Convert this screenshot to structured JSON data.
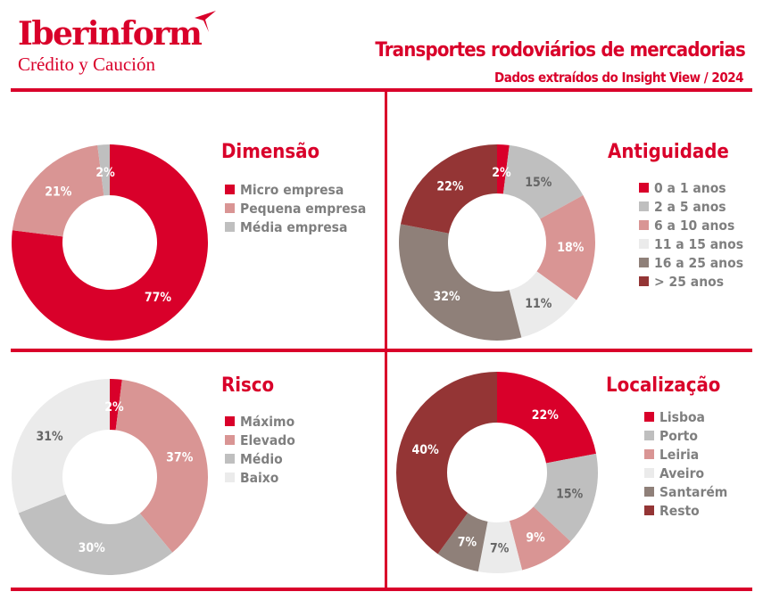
{
  "header": {
    "logo_brand": "Iberinform",
    "logo_sub": "Crédito y Caución",
    "title": "Transportes rodoviários de mercadorias",
    "subtitle": "Dados extraídos do Insight View / 2024"
  },
  "chart_data": [
    {
      "type": "pie",
      "title": "Dimensão",
      "categories": [
        "Micro empresa",
        "Pequena empresa",
        "Média empresa"
      ],
      "values": [
        77,
        21,
        2
      ],
      "labels": [
        "77%",
        "21%",
        "2%"
      ],
      "colors": [
        "#d9002a",
        "#d99594",
        "#bfbfbf"
      ],
      "label_colors": [
        "#ffffff",
        "#ffffff",
        "#ffffff"
      ],
      "legend": "right"
    },
    {
      "type": "pie",
      "title": "Antiguidade",
      "categories": [
        "0 a 1 anos",
        "2 a 5 anos",
        "6 a 10 anos",
        "11 a 15 anos",
        "16 a 25 anos",
        "> 25 anos"
      ],
      "values": [
        2,
        15,
        18,
        11,
        32,
        22
      ],
      "labels": [
        "2%",
        "15%",
        "18%",
        "11%",
        "32%",
        "22%"
      ],
      "colors": [
        "#d9002a",
        "#bfbfbf",
        "#d99594",
        "#ebebeb",
        "#8f8079",
        "#943535"
      ],
      "label_colors": [
        "#ffffff",
        "#666666",
        "#ffffff",
        "#666666",
        "#ffffff",
        "#ffffff"
      ],
      "legend": "right"
    },
    {
      "type": "pie",
      "title": "Risco",
      "categories": [
        "Máximo",
        "Elevado",
        "Médio",
        "Baixo"
      ],
      "values": [
        2,
        37,
        30,
        31
      ],
      "labels": [
        "2%",
        "37%",
        "30%",
        "31%"
      ],
      "colors": [
        "#d9002a",
        "#d99594",
        "#bfbfbf",
        "#ebebeb"
      ],
      "label_colors": [
        "#ffffff",
        "#ffffff",
        "#ffffff",
        "#666666"
      ],
      "legend": "right"
    },
    {
      "type": "pie",
      "title": "Localização",
      "categories": [
        "Lisboa",
        "Porto",
        "Leiria",
        "Aveiro",
        "Santarém",
        "Resto"
      ],
      "values": [
        22,
        15,
        9,
        7,
        7,
        40
      ],
      "labels": [
        "22%",
        "15%",
        "9%",
        "7%",
        "7%",
        "40%"
      ],
      "colors": [
        "#d9002a",
        "#bfbfbf",
        "#d99594",
        "#ebebeb",
        "#8f8079",
        "#943535"
      ],
      "label_colors": [
        "#ffffff",
        "#666666",
        "#ffffff",
        "#666666",
        "#ffffff",
        "#ffffff"
      ],
      "legend": "right"
    }
  ]
}
